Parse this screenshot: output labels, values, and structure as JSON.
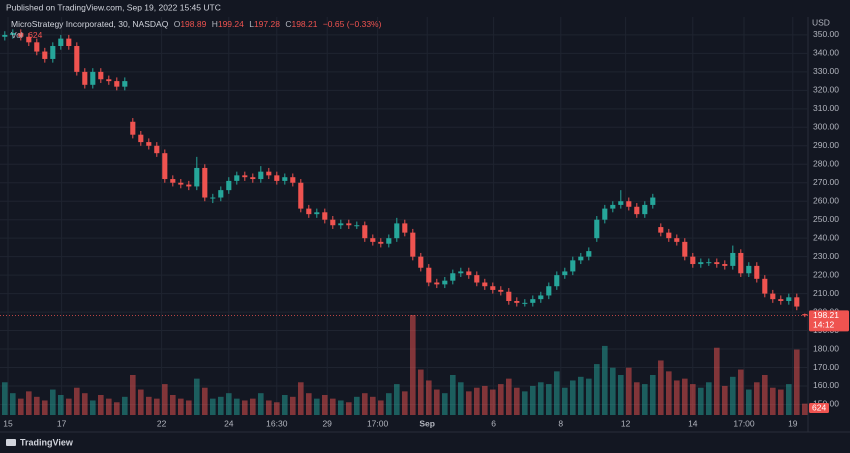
{
  "page": {
    "published": "Published on TradingView.com, Sep 19, 2022 15:45 UTC",
    "brand": "TradingView"
  },
  "chart_data": {
    "type": "candlestick",
    "symbol": "MicroStrategy Incorporated, 30, NASDAQ",
    "legend_labels": [
      "O",
      "H",
      "L",
      "C"
    ],
    "change": "−0.65 (−0.33%)",
    "volume_label": "Vol",
    "currency": "USD",
    "countdown": "14:12",
    "up_color": "#26a69a",
    "down_color": "#ef5350",
    "grid": true,
    "xlim": [
      -0.6,
      100.4
    ],
    "ylim": [
      144.3,
      359.7
    ],
    "yticks": [
      {
        "value": 150,
        "label": "150.00"
      },
      {
        "value": 160,
        "label": "160.00"
      },
      {
        "value": 170,
        "label": "170.00"
      },
      {
        "value": 180,
        "label": "180.00"
      },
      {
        "value": 190,
        "label": "190.00"
      },
      {
        "value": 200,
        "label": "200.00"
      },
      {
        "value": 210,
        "label": "210.00"
      },
      {
        "value": 220,
        "label": "220.00"
      },
      {
        "value": 230,
        "label": "230.00"
      },
      {
        "value": 240,
        "label": "240.00"
      },
      {
        "value": 250,
        "label": "250.00"
      },
      {
        "value": 260,
        "label": "260.00"
      },
      {
        "value": 270,
        "label": "270.00"
      },
      {
        "value": 280,
        "label": "280.00"
      },
      {
        "value": 290,
        "label": "290.00"
      },
      {
        "value": 300,
        "label": "300.00"
      },
      {
        "value": 310,
        "label": "310.00"
      },
      {
        "value": 320,
        "label": "320.00"
      },
      {
        "value": 330,
        "label": "330.00"
      },
      {
        "value": 340,
        "label": "340.00"
      },
      {
        "value": 350,
        "label": "350.00"
      }
    ],
    "xticks": [
      {
        "value": 0.4,
        "label": "15"
      },
      {
        "value": 7.1,
        "label": "17"
      },
      {
        "value": 19.6,
        "label": "22"
      },
      {
        "value": 28,
        "label": "24"
      },
      {
        "value": 34,
        "label": "16:30"
      },
      {
        "value": 40.3,
        "label": "29"
      },
      {
        "value": 46.6,
        "label": "17:00"
      },
      {
        "value": 52.8,
        "label": "Sep"
      },
      {
        "value": 61.1,
        "label": "6"
      },
      {
        "value": 69.5,
        "label": "8"
      },
      {
        "value": 77.6,
        "label": "12"
      },
      {
        "value": 86,
        "label": "14"
      },
      {
        "value": 92.4,
        "label": "17:00"
      },
      {
        "value": 98.5,
        "label": "19"
      }
    ],
    "open": [
      349,
      350,
      351,
      349,
      346,
      341,
      337,
      344,
      348,
      344,
      330,
      323,
      330,
      326,
      325,
      322,
      303,
      296,
      292,
      290,
      286,
      272,
      270,
      269,
      268,
      278,
      262,
      262,
      266,
      271,
      274,
      273,
      272,
      276,
      274,
      271,
      273,
      270,
      256,
      253,
      254,
      250,
      247,
      248,
      247,
      247,
      240,
      238,
      237,
      240,
      248,
      243,
      230,
      224,
      216,
      215,
      217,
      221,
      222,
      220,
      216,
      214,
      212,
      211,
      206,
      205,
      205,
      207,
      209,
      214,
      220,
      222,
      228,
      230,
      240,
      250,
      256,
      258,
      260,
      257,
      253,
      258,
      246,
      243,
      240,
      238,
      230,
      226,
      227,
      227,
      226,
      225,
      232,
      221,
      225,
      218,
      210,
      207,
      206,
      208,
      198.89
    ],
    "high": [
      352,
      353,
      353,
      351,
      348,
      343,
      346,
      350,
      350,
      346,
      332,
      332,
      332,
      328,
      327,
      327,
      305,
      298,
      294,
      292,
      288,
      274,
      272,
      271,
      284,
      280,
      264,
      268,
      273,
      276,
      276,
      275,
      279,
      278,
      276,
      275,
      275,
      272,
      258,
      256,
      256,
      252,
      250,
      250,
      249,
      249,
      242,
      240,
      242,
      251,
      250,
      245,
      232,
      226,
      218,
      219,
      223,
      224,
      224,
      222,
      218,
      216,
      214,
      213,
      208,
      207,
      209,
      211,
      216,
      222,
      224,
      230,
      232,
      235,
      252,
      258,
      260,
      266,
      262,
      259,
      260,
      264,
      248,
      245,
      242,
      240,
      232,
      229,
      229,
      229,
      228,
      236,
      234,
      227,
      227,
      220,
      212,
      209,
      210,
      210,
      199.24
    ],
    "low": [
      347,
      348,
      347,
      344,
      339,
      335,
      335,
      342,
      342,
      328,
      321,
      321,
      324,
      323,
      320,
      320,
      294,
      290,
      288,
      284,
      270,
      268,
      267,
      266,
      266,
      260,
      259,
      260,
      264,
      269,
      271,
      270,
      270,
      272,
      269,
      269,
      268,
      254,
      251,
      251,
      248,
      245,
      245,
      245,
      245,
      238,
      236,
      235,
      235,
      238,
      241,
      228,
      222,
      214,
      213,
      213,
      215,
      219,
      218,
      214,
      212,
      210,
      209,
      204,
      203,
      203,
      203,
      205,
      207,
      212,
      218,
      220,
      226,
      228,
      238,
      248,
      254,
      256,
      255,
      251,
      251,
      256,
      241,
      238,
      236,
      228,
      224,
      224,
      225,
      224,
      223,
      223,
      219,
      219,
      216,
      208,
      205,
      204,
      204,
      201,
      197.28
    ],
    "close": [
      350,
      351,
      349,
      346,
      341,
      337,
      344,
      348,
      344,
      330,
      323,
      330,
      326,
      325,
      322,
      325,
      296,
      292,
      290,
      286,
      272,
      270,
      269,
      268,
      278,
      262,
      262,
      266,
      271,
      274,
      273,
      272,
      276,
      274,
      271,
      273,
      270,
      256,
      253,
      254,
      250,
      247,
      248,
      247,
      247,
      240,
      238,
      237,
      240,
      248,
      243,
      230,
      224,
      216,
      215,
      217,
      221,
      222,
      220,
      216,
      214,
      212,
      211,
      206,
      205,
      205,
      207,
      209,
      214,
      220,
      222,
      228,
      230,
      233,
      250,
      256,
      258,
      260,
      257,
      253,
      258,
      262,
      243,
      240,
      238,
      230,
      226,
      227,
      227,
      226,
      225,
      232,
      221,
      225,
      218,
      210,
      207,
      206,
      208,
      203,
      198.21
    ],
    "volume": [
      1800,
      1200,
      900,
      1300,
      1000,
      800,
      1400,
      1100,
      900,
      1500,
      1200,
      800,
      1100,
      900,
      700,
      1000,
      2200,
      1400,
      1000,
      900,
      1700,
      1100,
      900,
      800,
      2000,
      1500,
      900,
      1000,
      1200,
      900,
      800,
      900,
      1200,
      800,
      700,
      1100,
      1000,
      1800,
      1200,
      900,
      1100,
      900,
      800,
      700,
      1000,
      1200,
      1000,
      800,
      1200,
      1700,
      1300,
      5500,
      2500,
      1900,
      1400,
      1200,
      2200,
      1800,
      1300,
      1500,
      1600,
      1400,
      1700,
      2000,
      1500,
      1300,
      1600,
      1800,
      1700,
      2400,
      1500,
      1900,
      2100,
      2000,
      2800,
      3800,
      2600,
      2200,
      2600,
      1800,
      1700,
      2200,
      3000,
      2400,
      1900,
      2000,
      1700,
      1500,
      1800,
      3700,
      1600,
      2100,
      2500,
      1400,
      1800,
      2200,
      1500,
      1400,
      1700,
      3600,
      624
    ]
  }
}
